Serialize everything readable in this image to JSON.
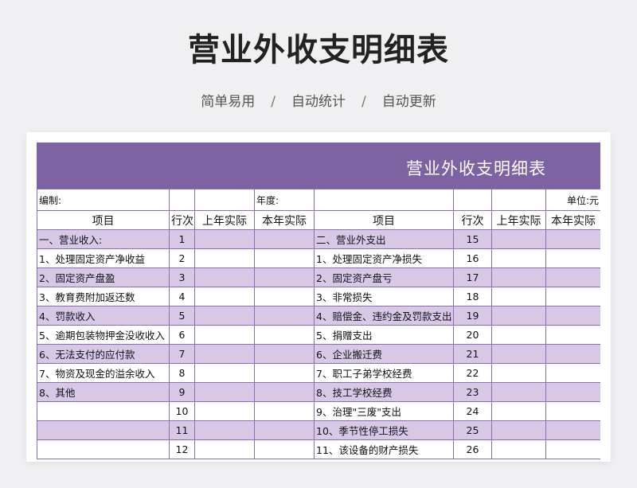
{
  "page": {
    "title": "营业外收支明细表",
    "subtitle_items": [
      "简单易用",
      "自动统计",
      "自动更新"
    ],
    "separator": "/"
  },
  "sheet": {
    "banner_title": "营业外收支明细表",
    "meta": {
      "compiler_label": "编制:",
      "year_label": "年度:",
      "unit_label": "单位:元"
    },
    "headers": [
      "项目",
      "行次",
      "上年实际",
      "本年实际",
      "项目",
      "行次",
      "上年实际",
      "本年实际"
    ],
    "rows": [
      {
        "left_item": "一、营业收入:",
        "left_no": "1",
        "right_item": "二、营业外支出",
        "right_no": "15"
      },
      {
        "left_item": "1、处理固定资产净收益",
        "left_no": "2",
        "right_item": "1、处理固定资产净损失",
        "right_no": "16"
      },
      {
        "left_item": "2、固定资产盘盈",
        "left_no": "3",
        "right_item": "2、固定资产盘亏",
        "right_no": "17"
      },
      {
        "left_item": "3、教育费附加返还数",
        "left_no": "4",
        "right_item": "3、非常损失",
        "right_no": "18"
      },
      {
        "left_item": "4、罚款收入",
        "left_no": "5",
        "right_item": "4、赔偿金、违约金及罚款支出",
        "right_no": "19"
      },
      {
        "left_item": "5、逾期包装物押金没收收入",
        "left_no": "6",
        "right_item": "5、捐赠支出",
        "right_no": "20"
      },
      {
        "left_item": "6、无法支付的应付款",
        "left_no": "7",
        "right_item": "6、企业搬迁费",
        "right_no": "21"
      },
      {
        "left_item": "7、物资及现金的溢余收入",
        "left_no": "8",
        "right_item": "7、职工子弟学校经费",
        "right_no": "22"
      },
      {
        "left_item": "8、其他",
        "left_no": "9",
        "right_item": "8、技工学校经费",
        "right_no": "23"
      },
      {
        "left_item": "",
        "left_no": "10",
        "right_item": "9、治理\"三废\"支出",
        "right_no": "24"
      },
      {
        "left_item": "",
        "left_no": "11",
        "right_item": "10、季节性停工损失",
        "right_no": "25"
      },
      {
        "left_item": "",
        "left_no": "12",
        "right_item": "11、该设备的财产损失",
        "right_no": "26"
      }
    ]
  },
  "colors": {
    "accent": "#7e63a3",
    "row_shade": "#d7c9e6",
    "grid": "#8b6fb0"
  }
}
